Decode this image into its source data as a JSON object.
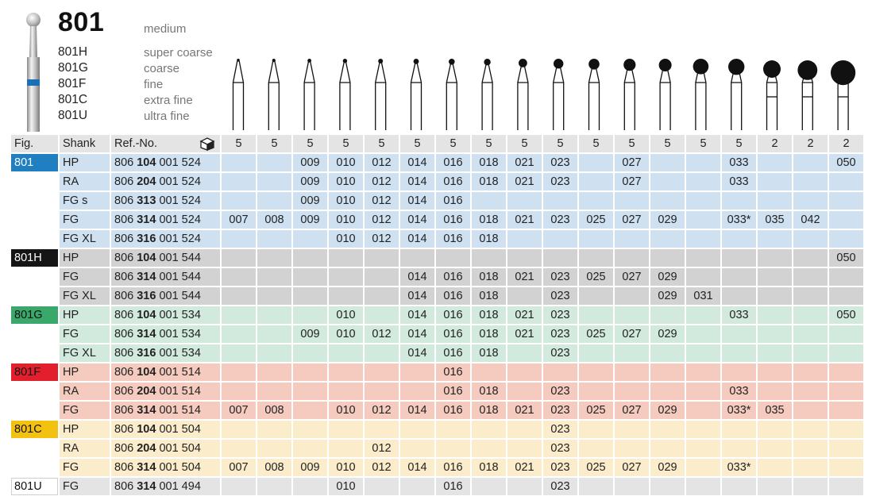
{
  "header": {
    "title": "801",
    "subtitle": "medium",
    "variants": [
      {
        "code": "801H",
        "grit": "super coarse"
      },
      {
        "code": "801G",
        "grit": "coarse"
      },
      {
        "code": "801F",
        "grit": "fine"
      },
      {
        "code": "801C",
        "grit": "extra fine"
      },
      {
        "code": "801U",
        "grit": "ultra fine"
      }
    ]
  },
  "table": {
    "headers": {
      "fig": "Fig.",
      "shank": "Shank",
      "ref": "Ref.-No."
    },
    "quantities": [
      "5",
      "5",
      "5",
      "5",
      "5",
      "5",
      "5",
      "5",
      "5",
      "5",
      "5",
      "5",
      "5",
      "5",
      "5",
      "2",
      "2",
      "2"
    ],
    "groups": [
      {
        "name": "801",
        "color": "#cfe1f1",
        "tag_bg": "#1f7fc0",
        "tag_fg": "#ffffff",
        "rows": [
          {
            "shank": "HP",
            "ref_a": "806 ",
            "ref_b": "104",
            "ref_c": " 001 524",
            "sizes": [
              "",
              "",
              "009",
              "010",
              "012",
              "014",
              "016",
              "018",
              "021",
              "023",
              "",
              "027",
              "",
              "",
              "033",
              "",
              "",
              "050"
            ]
          },
          {
            "shank": "RA",
            "ref_a": "806 ",
            "ref_b": "204",
            "ref_c": " 001 524",
            "sizes": [
              "",
              "",
              "009",
              "010",
              "012",
              "014",
              "016",
              "018",
              "021",
              "023",
              "",
              "027",
              "",
              "",
              "033",
              "",
              "",
              ""
            ]
          },
          {
            "shank": "FG s",
            "ref_a": "806 ",
            "ref_b": "313",
            "ref_c": " 001 524",
            "sizes": [
              "",
              "",
              "009",
              "010",
              "012",
              "014",
              "016",
              "",
              "",
              "",
              "",
              "",
              "",
              "",
              "",
              "",
              "",
              ""
            ]
          },
          {
            "shank": "FG",
            "ref_a": "806 ",
            "ref_b": "314",
            "ref_c": " 001 524",
            "sizes": [
              "007",
              "008",
              "009",
              "010",
              "012",
              "014",
              "016",
              "018",
              "021",
              "023",
              "025",
              "027",
              "029",
              "",
              "033*",
              "035",
              "042",
              ""
            ]
          },
          {
            "shank": "FG XL",
            "ref_a": "806 ",
            "ref_b": "316",
            "ref_c": " 001 524",
            "sizes": [
              "",
              "",
              "",
              "010",
              "012",
              "014",
              "016",
              "018",
              "",
              "",
              "",
              "",
              "",
              "",
              "",
              "",
              "",
              ""
            ]
          }
        ]
      },
      {
        "name": "801H",
        "color": "#d2d2d2",
        "tag_bg": "#151515",
        "tag_fg": "#ffffff",
        "rows": [
          {
            "shank": "HP",
            "ref_a": "806 ",
            "ref_b": "104",
            "ref_c": " 001 544",
            "sizes": [
              "",
              "",
              "",
              "",
              "",
              "",
              "",
              "",
              "",
              "",
              "",
              "",
              "",
              "",
              "",
              "",
              "",
              "050"
            ]
          },
          {
            "shank": "FG",
            "ref_a": "806 ",
            "ref_b": "314",
            "ref_c": " 001 544",
            "sizes": [
              "",
              "",
              "",
              "",
              "",
              "014",
              "016",
              "018",
              "021",
              "023",
              "025",
              "027",
              "029",
              "",
              "",
              "",
              "",
              ""
            ]
          },
          {
            "shank": "FG XL",
            "ref_a": "806 ",
            "ref_b": "316",
            "ref_c": " 001 544",
            "sizes": [
              "",
              "",
              "",
              "",
              "",
              "014",
              "016",
              "018",
              "",
              "023",
              "",
              "",
              "029",
              "031",
              "",
              "",
              "",
              ""
            ]
          }
        ]
      },
      {
        "name": "801G",
        "color": "#d2e9dd",
        "tag_bg": "#3aa86b",
        "tag_fg": "#111111",
        "rows": [
          {
            "shank": "HP",
            "ref_a": "806 ",
            "ref_b": "104",
            "ref_c": " 001 534",
            "sizes": [
              "",
              "",
              "",
              "010",
              "",
              "014",
              "016",
              "018",
              "021",
              "023",
              "",
              "",
              "",
              "",
              "033",
              "",
              "",
              "050"
            ]
          },
          {
            "shank": "FG",
            "ref_a": "806 ",
            "ref_b": "314",
            "ref_c": " 001 534",
            "sizes": [
              "",
              "",
              "009",
              "010",
              "012",
              "014",
              "016",
              "018",
              "021",
              "023",
              "025",
              "027",
              "029",
              "",
              "",
              "",
              "",
              ""
            ]
          },
          {
            "shank": "FG XL",
            "ref_a": "806 ",
            "ref_b": "316",
            "ref_c": " 001 534",
            "sizes": [
              "",
              "",
              "",
              "",
              "",
              "014",
              "016",
              "018",
              "",
              "023",
              "",
              "",
              "",
              "",
              "",
              "",
              "",
              ""
            ]
          }
        ]
      },
      {
        "name": "801F",
        "color": "#f6cbbf",
        "tag_bg": "#e31e2d",
        "tag_fg": "#111111",
        "rows": [
          {
            "shank": "HP",
            "ref_a": "806 ",
            "ref_b": "104",
            "ref_c": " 001 514",
            "sizes": [
              "",
              "",
              "",
              "",
              "",
              "",
              "016",
              "",
              "",
              "",
              "",
              "",
              "",
              "",
              "",
              "",
              "",
              ""
            ]
          },
          {
            "shank": "RA",
            "ref_a": "806 ",
            "ref_b": "204",
            "ref_c": " 001 514",
            "sizes": [
              "",
              "",
              "",
              "",
              "",
              "",
              "016",
              "018",
              "",
              "023",
              "",
              "",
              "",
              "",
              "033",
              "",
              "",
              ""
            ]
          },
          {
            "shank": "FG",
            "ref_a": "806 ",
            "ref_b": "314",
            "ref_c": " 001 514",
            "sizes": [
              "007",
              "008",
              "",
              "010",
              "012",
              "014",
              "016",
              "018",
              "021",
              "023",
              "025",
              "027",
              "029",
              "",
              "033*",
              "035",
              "",
              ""
            ]
          }
        ]
      },
      {
        "name": "801C",
        "color": "#fbeccb",
        "tag_bg": "#f3c211",
        "tag_fg": "#111111",
        "rows": [
          {
            "shank": "HP",
            "ref_a": "806 ",
            "ref_b": "104",
            "ref_c": " 001 504",
            "sizes": [
              "",
              "",
              "",
              "",
              "",
              "",
              "",
              "",
              "",
              "023",
              "",
              "",
              "",
              "",
              "",
              "",
              "",
              ""
            ]
          },
          {
            "shank": "RA",
            "ref_a": "806 ",
            "ref_b": "204",
            "ref_c": " 001 504",
            "sizes": [
              "",
              "",
              "",
              "",
              "012",
              "",
              "",
              "",
              "",
              "023",
              "",
              "",
              "",
              "",
              "",
              "",
              "",
              ""
            ]
          },
          {
            "shank": "FG",
            "ref_a": "806 ",
            "ref_b": "314",
            "ref_c": " 001 504",
            "sizes": [
              "007",
              "008",
              "009",
              "010",
              "012",
              "014",
              "016",
              "018",
              "021",
              "023",
              "025",
              "027",
              "029",
              "",
              "033*",
              "",
              "",
              ""
            ]
          }
        ]
      },
      {
        "name": "801U",
        "color": "#e4e4e4",
        "tag_bg": "#ffffff",
        "tag_fg": "#111111",
        "rows": [
          {
            "shank": "FG",
            "ref_a": "806 ",
            "ref_b": "314",
            "ref_c": " 001 494",
            "sizes": [
              "",
              "",
              "",
              "010",
              "",
              "",
              "016",
              "",
              "",
              "023",
              "",
              "",
              "",
              "",
              "",
              "",
              "",
              ""
            ]
          }
        ]
      }
    ]
  }
}
